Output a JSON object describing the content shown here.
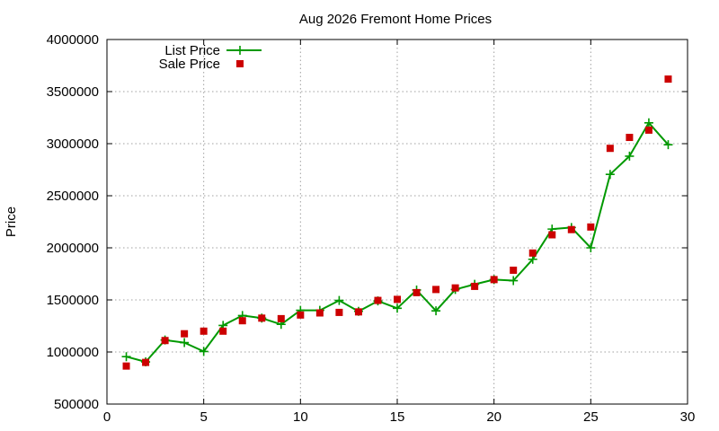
{
  "chart_data": {
    "type": "line",
    "title": "Aug 2026 Fremont Home Prices",
    "xlabel": "",
    "ylabel": "Price",
    "xlim": [
      0,
      30
    ],
    "ylim": [
      500000,
      4000000
    ],
    "xticks": [
      0,
      5,
      10,
      15,
      20,
      25,
      30
    ],
    "yticks": [
      500000,
      1000000,
      1500000,
      2000000,
      2500000,
      3000000,
      3500000,
      4000000
    ],
    "grid": true,
    "legend_position": "top-left",
    "series": [
      {
        "name": "List Price",
        "style": "line-with-plus-markers",
        "color": "#009900",
        "x": [
          1,
          2,
          3,
          4,
          5,
          6,
          7,
          8,
          9,
          10,
          11,
          12,
          13,
          14,
          15,
          16,
          17,
          18,
          19,
          20,
          21,
          22,
          23,
          24,
          25,
          26,
          27,
          28,
          29
        ],
        "y": [
          955000,
          905000,
          1115000,
          1090000,
          1005000,
          1255000,
          1350000,
          1325000,
          1265000,
          1400000,
          1400000,
          1495000,
          1390000,
          1490000,
          1420000,
          1595000,
          1395000,
          1600000,
          1650000,
          1695000,
          1685000,
          1890000,
          2180000,
          2195000,
          2000000,
          2705000,
          2880000,
          3200000,
          2990000
        ]
      },
      {
        "name": "Sale Price",
        "style": "square-markers",
        "color": "#cc0000",
        "x": [
          1,
          2,
          3,
          4,
          5,
          6,
          7,
          8,
          9,
          10,
          11,
          12,
          13,
          14,
          15,
          16,
          17,
          18,
          19,
          20,
          21,
          22,
          23,
          24,
          25,
          26,
          27,
          28,
          29
        ],
        "y": [
          865000,
          900000,
          1110000,
          1175000,
          1200000,
          1200000,
          1300000,
          1325000,
          1320000,
          1355000,
          1375000,
          1380000,
          1385000,
          1495000,
          1505000,
          1570000,
          1600000,
          1615000,
          1630000,
          1695000,
          1785000,
          1950000,
          2125000,
          2175000,
          2200000,
          2955000,
          3060000,
          3130000,
          3620000
        ]
      }
    ]
  }
}
